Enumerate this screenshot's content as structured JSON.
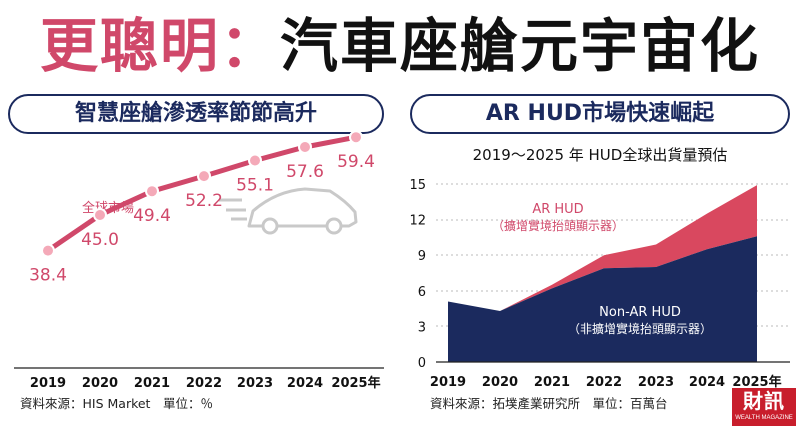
{
  "title": {
    "highlight": "更聰明：",
    "main": "汽車座艙元宇宙化"
  },
  "left": {
    "pill": "智慧座艙滲透率節節高升",
    "source": "資料來源：HIS Market　單位：％"
  },
  "right": {
    "pill": "AR HUD市場快速崛起",
    "source": "資料來源：拓墣產業研究所　單位：百萬台"
  },
  "logo": {
    "big": "財訊",
    "small": "WEALTH MAGAZINE"
  },
  "colors": {
    "accent": "#d0486a",
    "navy": "#1b2a5e",
    "ar_fill": "#d9485f",
    "line": "#e0728a"
  },
  "chart_data": [
    {
      "type": "line",
      "title": "",
      "categories": [
        "2019",
        "2020",
        "2021",
        "2022",
        "2023",
        "2024",
        "2025年"
      ],
      "series": [
        {
          "name": "全球市場",
          "values": [
            38.4,
            45.0,
            49.4,
            52.2,
            55.1,
            57.6,
            59.4
          ]
        }
      ],
      "data_labels": [
        "38.4",
        "45.0",
        "49.4",
        "52.2",
        "55.1",
        "57.6",
        "59.4"
      ],
      "xlabel": "",
      "ylabel": "",
      "ylim": [
        30,
        65
      ],
      "grid": false,
      "legend": "none",
      "unit": "％"
    },
    {
      "type": "area",
      "title": "2019～2025 年 HUD全球出貨量預估",
      "categories": [
        "2019",
        "2020",
        "2021",
        "2022",
        "2023",
        "2024",
        "2025年"
      ],
      "series": [
        {
          "name": "Non-AR HUD",
          "name_sub": "（非擴增實境抬頭顯示器）",
          "values": [
            5.1,
            4.3,
            6.2,
            7.9,
            8.0,
            9.5,
            10.6
          ]
        },
        {
          "name": "AR HUD",
          "name_sub": "（擴增實境抬頭顯示器）",
          "values": [
            0,
            0,
            0.3,
            1.1,
            1.9,
            3.0,
            4.3
          ]
        }
      ],
      "stacked": true,
      "yticks": [
        "0",
        "3",
        "6",
        "9",
        "12",
        "15"
      ],
      "xlabel": "",
      "ylabel": "",
      "ylim": [
        0,
        15
      ],
      "grid": true,
      "legend": "inline",
      "unit": "百萬台"
    }
  ]
}
